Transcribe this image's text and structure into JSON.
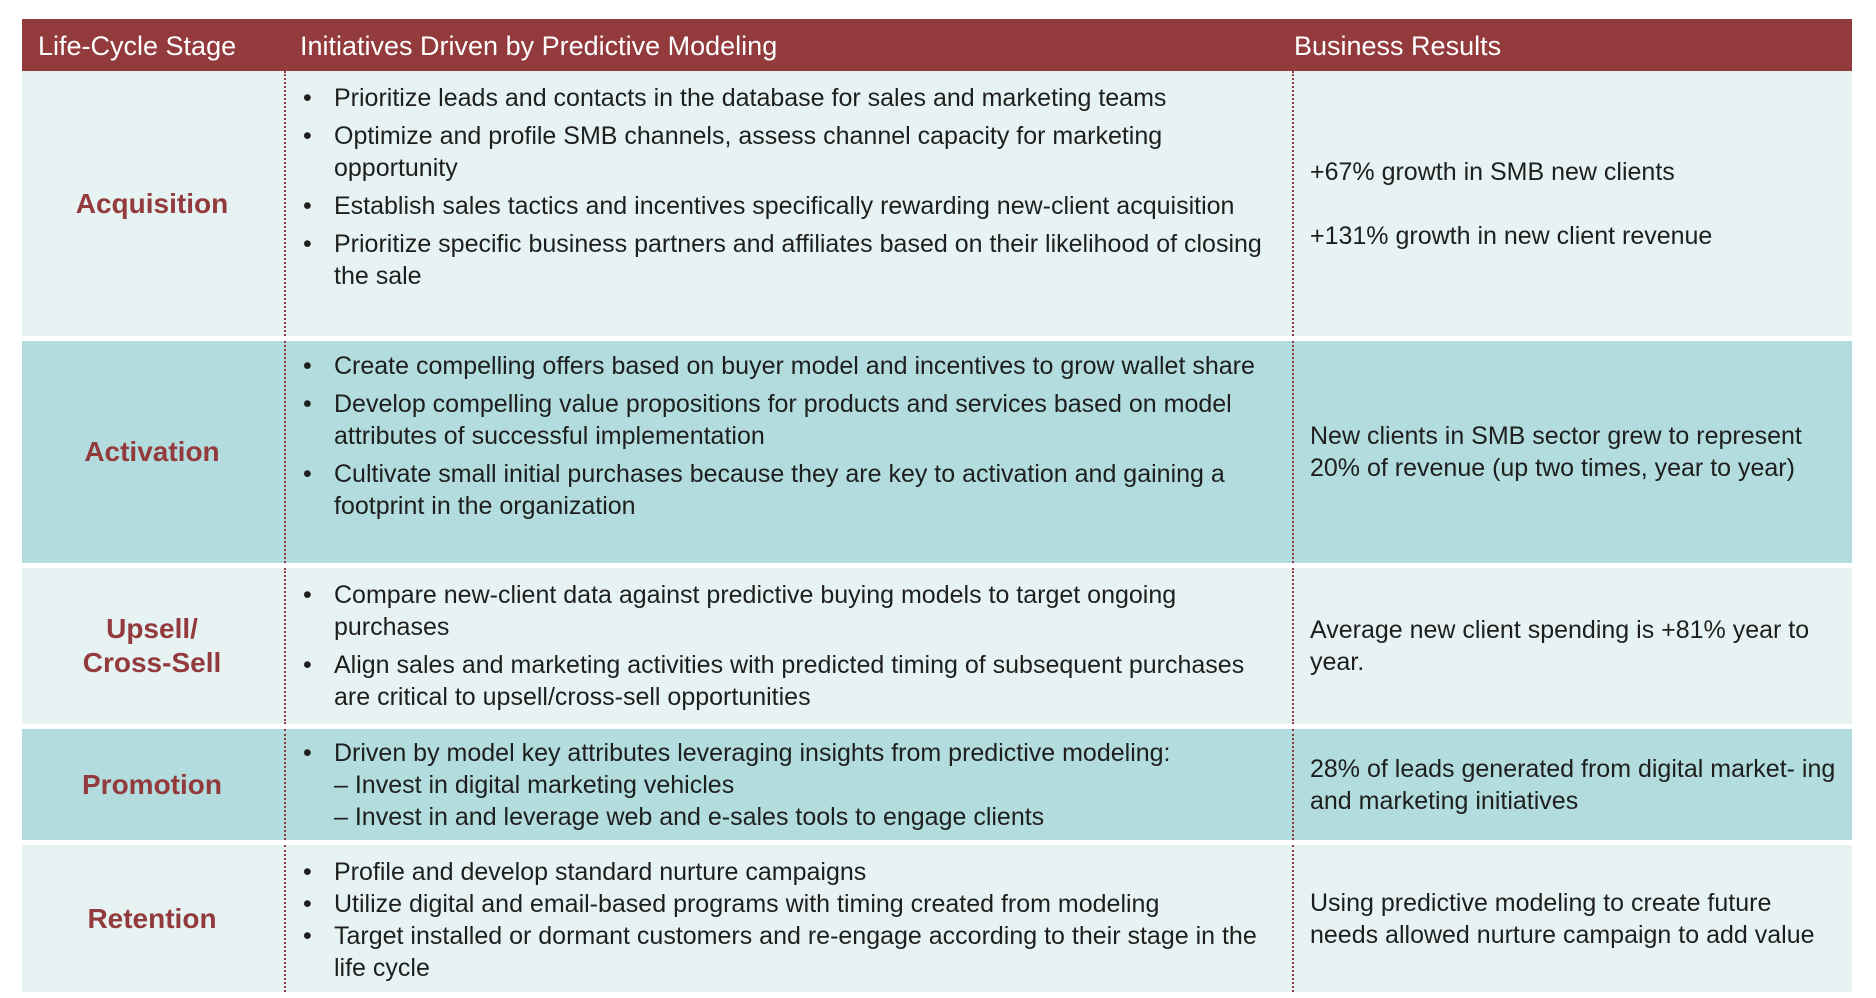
{
  "header": {
    "col1": "Life-Cycle Stage",
    "col2": "Initiatives Driven by Predictive Modeling",
    "col3": "Business Results"
  },
  "rows": [
    {
      "stage": "Acquisition",
      "initiatives": [
        "Prioritize leads and contacts in the database for sales and marketing teams",
        "Optimize and profile SMB channels, assess channel capacity for marketing opportunity",
        "Establish sales tactics and incentives specifically rewarding new-client acquisition",
        "Prioritize specific business partners and affiliates based on their likelihood of closing the sale"
      ],
      "results": [
        "+67% growth in SMB new clients",
        "+131% growth in new client revenue"
      ]
    },
    {
      "stage": "Activation",
      "initiatives": [
        "Create compelling offers based on buyer model and incentives to grow wallet share",
        "Develop compelling value propositions for products and services based on model attributes of successful implementation",
        "Cultivate small initial purchases because they are key to activation and gaining a footprint in the organization"
      ],
      "results": [
        "New clients in SMB sector grew to represent 20% of revenue (up two times, year to year)"
      ]
    },
    {
      "stage_line1": "Upsell/",
      "stage_line2": "Cross-Sell",
      "initiatives": [
        "Compare new-client data against predictive buying models to target ongoing purchases",
        "Align sales and marketing activities with predicted timing of subsequent purchases are critical to upsell/cross-sell opportunities"
      ],
      "results": [
        "Average new client spending is +81% year to year."
      ]
    },
    {
      "stage": "Promotion",
      "initiative_main": "Driven by model key attributes leveraging insights from predictive modeling:",
      "initiative_subs": [
        "– Invest in digital marketing vehicles",
        "– Invest in and leverage web and e-sales tools to engage clients"
      ],
      "results": [
        "28% of leads generated from digital market- ing and marketing initiatives"
      ]
    },
    {
      "stage": "Retention",
      "initiatives": [
        "Profile and develop standard nurture campaigns",
        "Utilize digital and email-based programs with timing created from modeling",
        "Target installed or dormant customers and re-engage according to their stage in the life cycle"
      ],
      "results": [
        "Using predictive modeling to create future needs allowed nurture campaign to add value"
      ]
    }
  ]
}
